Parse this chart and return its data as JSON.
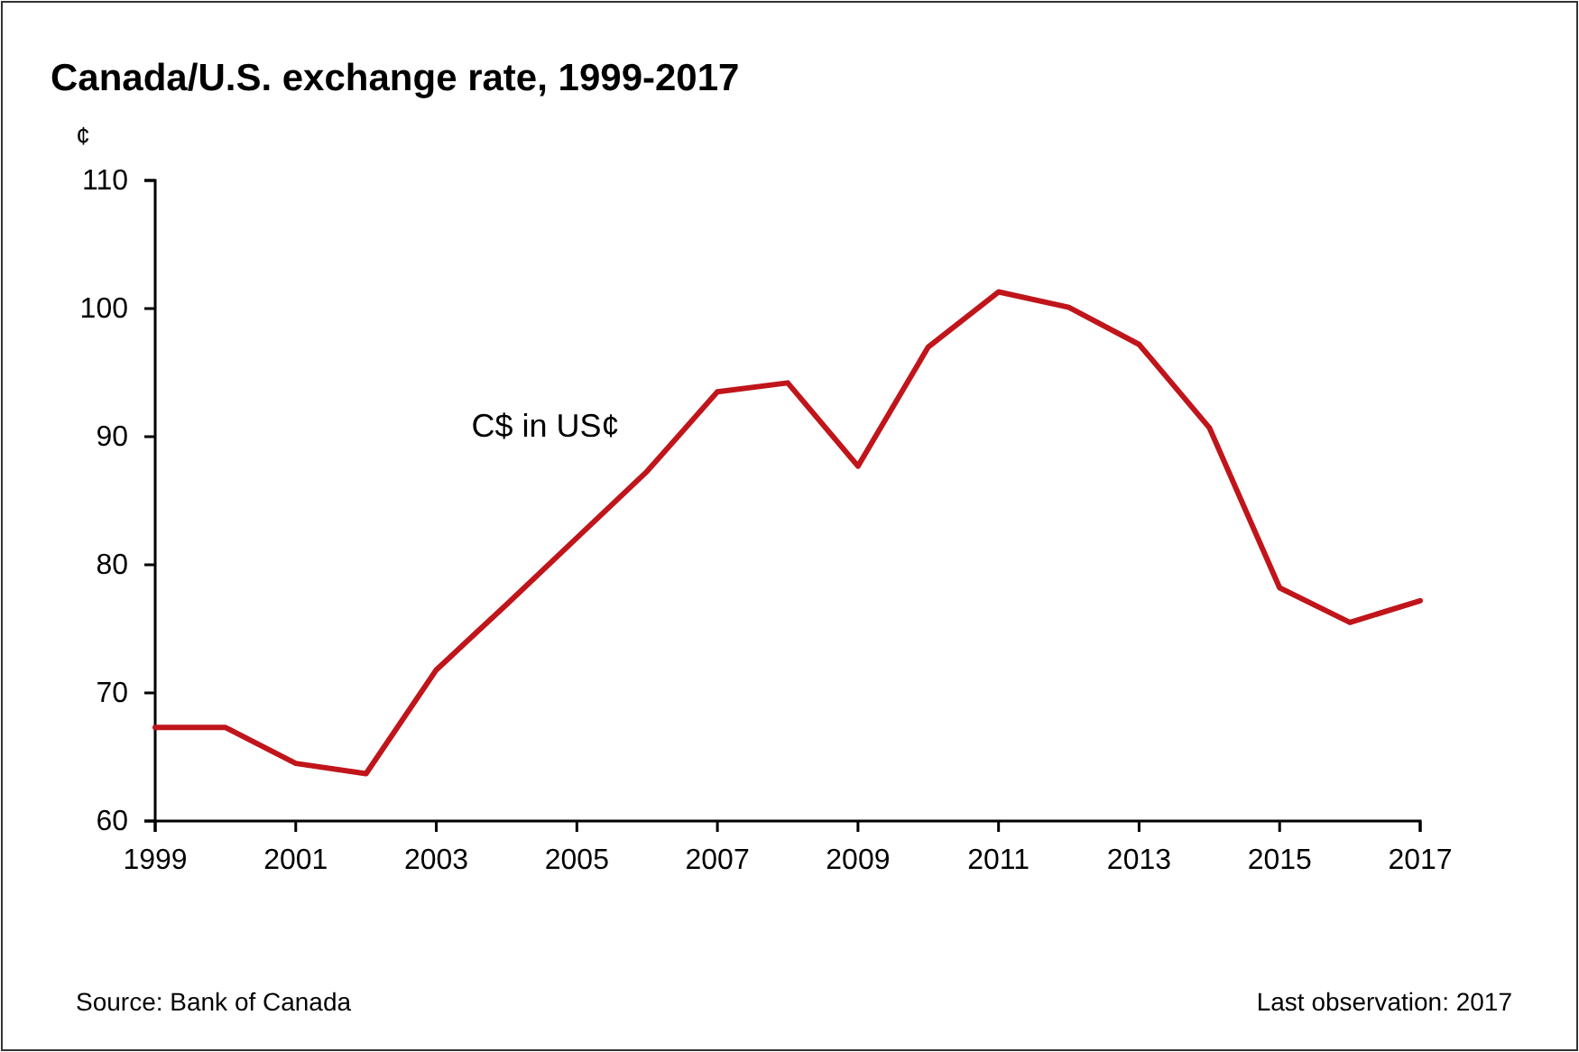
{
  "chart_data": {
    "type": "line",
    "title": "Canada/U.S. exchange rate, 1999-2017",
    "ylabel": "¢",
    "x": [
      1999,
      2000,
      2001,
      2002,
      2003,
      2004,
      2005,
      2006,
      2007,
      2008,
      2009,
      2010,
      2011,
      2012,
      2013,
      2014,
      2015,
      2016,
      2017
    ],
    "series": [
      {
        "name": "C$ in US¢",
        "color": "#c0151b",
        "values": [
          67.3,
          67.3,
          64.5,
          63.7,
          71.8,
          76.9,
          82.1,
          87.3,
          93.5,
          94.2,
          87.7,
          97.0,
          101.3,
          100.1,
          97.2,
          90.7,
          78.2,
          75.5,
          77.2
        ]
      }
    ],
    "xlim": [
      1999,
      2017
    ],
    "xticks": [
      1999,
      2001,
      2003,
      2005,
      2007,
      2009,
      2011,
      2013,
      2015,
      2017
    ],
    "ylim": [
      60,
      110
    ],
    "yticks": [
      60,
      70,
      80,
      90,
      100,
      110
    ],
    "grid": false,
    "legend": false,
    "marker": "none",
    "line_style": "solid",
    "annotations": [
      "Source: Bank of Canada",
      "Last observation: 2017"
    ]
  }
}
